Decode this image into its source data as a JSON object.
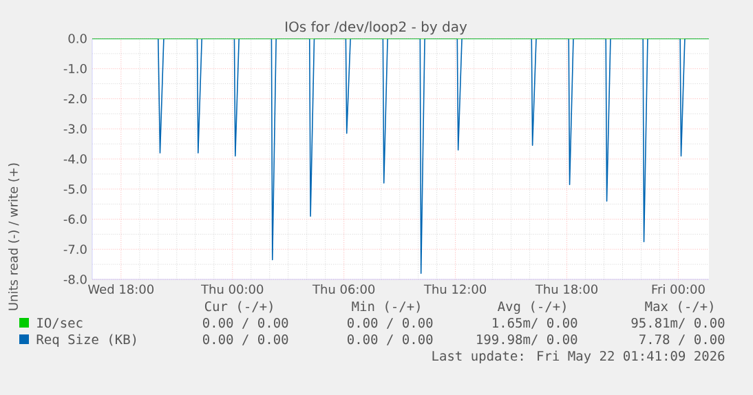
{
  "chart_data": {
    "type": "line",
    "title": "IOs for /dev/loop2 - by day",
    "ylabel": "Units read (-) / write (+)",
    "xlim": [
      "2026-05-20T16:27",
      "2026-05-22T01:39"
    ],
    "ylim": [
      -8,
      0
    ],
    "xticks": [
      {
        "value": "2026-05-20T18:00",
        "label": "Wed 18:00"
      },
      {
        "value": "2026-05-21T00:00",
        "label": "Thu 00:00"
      },
      {
        "value": "2026-05-21T06:00",
        "label": "Thu 06:00"
      },
      {
        "value": "2026-05-21T12:00",
        "label": "Thu 12:00"
      },
      {
        "value": "2026-05-21T18:00",
        "label": "Thu 18:00"
      },
      {
        "value": "2026-05-22T00:00",
        "label": "Fri 00:00"
      }
    ],
    "yticks": [
      {
        "value": 0,
        "label": "0.0"
      },
      {
        "value": -1,
        "label": "-1.0"
      },
      {
        "value": -2,
        "label": "-2.0"
      },
      {
        "value": -3,
        "label": "-3.0"
      },
      {
        "value": -4,
        "label": "-4.0"
      },
      {
        "value": -5,
        "label": "-5.0"
      },
      {
        "value": -6,
        "label": "-6.0"
      },
      {
        "value": -7,
        "label": "-7.0"
      },
      {
        "value": -8,
        "label": "-8.0"
      }
    ],
    "grid": true,
    "legend": "bottom left",
    "series": [
      {
        "name": "IO/sec",
        "color": "#00cc00",
        "x": [
          "2026-05-20T16:27",
          "2026-05-22T01:39"
        ],
        "values": [
          0,
          0
        ]
      },
      {
        "name": "Req Size (KB)",
        "color": "#0066b3",
        "x": [
          "2026-05-20T16:27",
          "2026-05-20T20:00",
          "2026-05-20T20:06",
          "2026-05-20T20:18",
          "2026-05-20T22:06",
          "2026-05-20T22:09",
          "2026-05-20T22:21",
          "2026-05-21T00:06",
          "2026-05-21T00:09",
          "2026-05-21T00:21",
          "2026-05-21T02:06",
          "2026-05-21T02:09",
          "2026-05-21T02:21",
          "2026-05-21T04:09",
          "2026-05-21T04:12",
          "2026-05-21T04:24",
          "2026-05-21T06:06",
          "2026-05-21T06:09",
          "2026-05-21T06:21",
          "2026-05-21T08:06",
          "2026-05-21T08:09",
          "2026-05-21T08:21",
          "2026-05-21T10:06",
          "2026-05-21T10:09",
          "2026-05-21T10:21",
          "2026-05-21T12:06",
          "2026-05-21T12:09",
          "2026-05-21T12:21",
          "2026-05-21T16:06",
          "2026-05-21T16:09",
          "2026-05-21T16:21",
          "2026-05-21T18:06",
          "2026-05-21T18:09",
          "2026-05-21T18:21",
          "2026-05-21T20:06",
          "2026-05-21T20:09",
          "2026-05-21T20:21",
          "2026-05-21T22:06",
          "2026-05-21T22:09",
          "2026-05-21T22:21",
          "2026-05-22T00:06",
          "2026-05-22T00:09",
          "2026-05-22T00:21",
          "2026-05-22T01:39"
        ],
        "values": [
          0,
          0,
          -3.8,
          0,
          0,
          -3.8,
          0,
          0,
          -3.9,
          0,
          0,
          -7.35,
          0,
          0,
          -5.9,
          0,
          0,
          -3.15,
          0,
          0,
          -4.8,
          0,
          0,
          -7.8,
          0,
          0,
          -3.7,
          0,
          0,
          -3.55,
          0,
          0,
          -4.85,
          0,
          0,
          -5.4,
          0,
          0,
          -6.75,
          0,
          0,
          -3.9,
          0,
          0
        ]
      }
    ],
    "annotations": [
      "Cur (-/+)",
      "Min (-/+)",
      "Avg (-/+)",
      "Max (-/+)",
      "0.00 /  0.00",
      "0.00 /  0.00",
      "1.65m/  0.00",
      "95.81m/  0.00",
      "0.00 /  0.00",
      "0.00 /  0.00",
      "199.98m/  0.00",
      "7.78 /  0.00",
      "Last update: Fri May 22 01:41:09 2026"
    ]
  }
}
